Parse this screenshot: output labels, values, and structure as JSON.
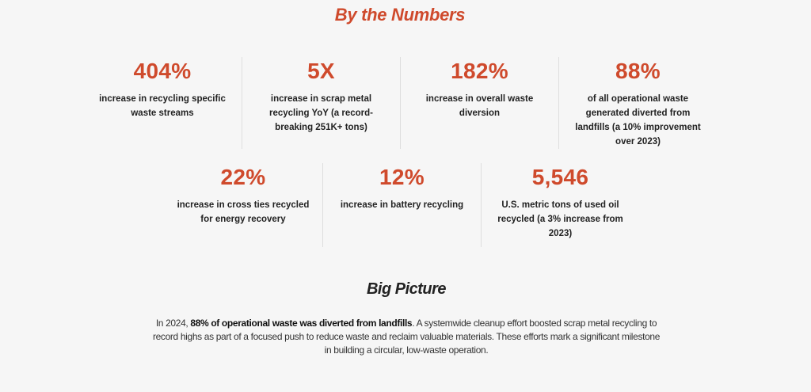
{
  "section_title": "By the Numbers",
  "stats_row1": [
    {
      "value": "404%",
      "description": "increase in recycling specific waste streams"
    },
    {
      "value": "5X",
      "description": "increase in scrap metal recycling YoY (a record-breaking 251K+ tons)"
    },
    {
      "value": "182%",
      "description": "increase in overall waste diversion"
    },
    {
      "value": "88%",
      "description": "of all operational waste generated diverted from landfills (a 10% improvement over 2023)"
    }
  ],
  "stats_row2": [
    {
      "value": "22%",
      "description": "increase in cross ties recycled for energy recovery"
    },
    {
      "value": "12%",
      "description": "increase in battery recycling"
    },
    {
      "value": "5,546",
      "description": "U.S. metric tons of used oil recycled (a 3% increase from 2023)"
    }
  ],
  "big_picture": {
    "title": "Big Picture",
    "intro": "In 2024, ",
    "highlight": "88% of operational waste was diverted from landfills",
    "body": ". A systemwide cleanup effort boosted scrap metal recycling to record highs as part of a focused push to reduce waste and reclaim valuable materials. These efforts mark a significant milestone in building a circular, low-waste operation."
  },
  "colors": {
    "accent": "#cf4a2c",
    "background": "#f6f6f6"
  }
}
